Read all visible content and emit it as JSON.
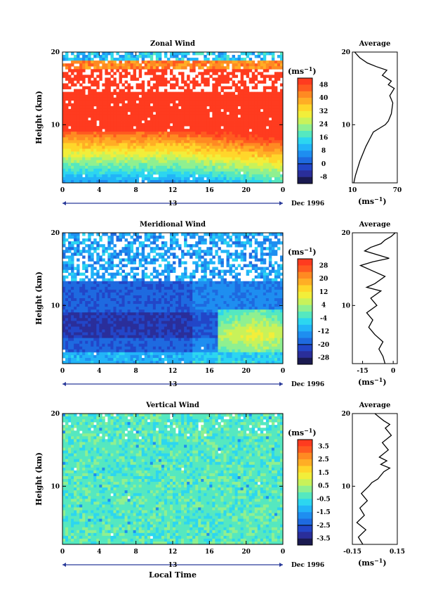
{
  "chart_data": [
    {
      "type": "heatmap",
      "title": "Zonal Wind",
      "xlabel": "",
      "ylabel": "Height (km)",
      "xlim": [
        0,
        24
      ],
      "ylim": [
        2,
        20
      ],
      "x_ticks": [
        "0",
        "4",
        "8",
        "12",
        "16",
        "20",
        "0"
      ],
      "y_ticks": [
        "20",
        "10"
      ],
      "day_label": "13",
      "date_label": "Dec 1996",
      "colorbar": {
        "unit_prefix": "(ms",
        "unit_exp": "−1",
        "unit_suffix": ")",
        "ticks": [
          "48",
          "40",
          "32",
          "24",
          "16",
          "8",
          "0",
          "-8"
        ],
        "levels": [
          52,
          48,
          44,
          40,
          36,
          32,
          28,
          24,
          20,
          16,
          12,
          8,
          4,
          0,
          -4,
          -8
        ]
      },
      "profile": {
        "title": "Average",
        "x_ticks": [
          "10",
          "70"
        ],
        "xlim": [
          10,
          70
        ],
        "y_ticks": [
          "20",
          "10"
        ],
        "unit_prefix": "(ms",
        "unit_exp": "−1",
        "unit_suffix": ")",
        "points": [
          [
            12,
            2
          ],
          [
            14,
            3
          ],
          [
            17,
            4
          ],
          [
            20,
            5
          ],
          [
            24,
            6
          ],
          [
            28,
            7
          ],
          [
            33,
            8
          ],
          [
            38,
            9
          ],
          [
            46,
            9.5
          ],
          [
            54,
            10
          ],
          [
            58,
            10.5
          ],
          [
            62,
            11.5
          ],
          [
            64,
            13
          ],
          [
            60,
            14
          ],
          [
            66,
            15
          ],
          [
            58,
            15.5
          ],
          [
            62,
            16
          ],
          [
            50,
            16.8
          ],
          [
            56,
            17.5
          ],
          [
            42,
            18
          ],
          [
            30,
            18.5
          ],
          [
            20,
            19.2
          ],
          [
            13,
            20
          ]
        ]
      }
    },
    {
      "type": "heatmap",
      "title": "Meridional Wind",
      "xlabel": "",
      "ylabel": "Height (km)",
      "xlim": [
        0,
        24
      ],
      "ylim": [
        2,
        20
      ],
      "x_ticks": [
        "0",
        "4",
        "8",
        "12",
        "16",
        "20",
        "0"
      ],
      "y_ticks": [
        "20",
        "10"
      ],
      "day_label": "13",
      "date_label": "Dec 1996",
      "colorbar": {
        "unit_prefix": "(ms",
        "unit_exp": "−1",
        "unit_suffix": ")",
        "ticks": [
          "28",
          "20",
          "12",
          "4",
          "-4",
          "-12",
          "-20",
          "-28"
        ],
        "levels": [
          32,
          28,
          24,
          20,
          16,
          12,
          8,
          4,
          0,
          -4,
          -8,
          -12,
          -16,
          -20,
          -24,
          -28
        ]
      },
      "profile": {
        "title": "Average",
        "x_ticks": [
          "-15",
          "0"
        ],
        "xlim": [
          -20,
          2
        ],
        "y_ticks": [
          "20",
          "10"
        ],
        "unit_prefix": "(ms",
        "unit_exp": "−1",
        "unit_suffix": ")",
        "points": [
          [
            -4,
            2
          ],
          [
            -5,
            3
          ],
          [
            -7,
            4
          ],
          [
            -5,
            5
          ],
          [
            -9,
            6
          ],
          [
            -12,
            7
          ],
          [
            -10,
            8
          ],
          [
            -13,
            9
          ],
          [
            -8,
            10
          ],
          [
            -11,
            11
          ],
          [
            -6,
            12
          ],
          [
            -13,
            12.5
          ],
          [
            -9,
            13
          ],
          [
            -4,
            14
          ],
          [
            -12,
            15
          ],
          [
            -16,
            15.5
          ],
          [
            -10,
            16
          ],
          [
            -2,
            16.5
          ],
          [
            -14,
            17.5
          ],
          [
            -11,
            18
          ],
          [
            -6,
            18.5
          ],
          [
            -4,
            19
          ],
          [
            -1,
            19.5
          ],
          [
            1,
            20
          ]
        ]
      }
    },
    {
      "type": "heatmap",
      "title": "Vertical Wind",
      "xlabel": "Local Time",
      "ylabel": "Height (km)",
      "xlim": [
        0,
        24
      ],
      "ylim": [
        2,
        20
      ],
      "x_ticks": [
        "0",
        "4",
        "8",
        "12",
        "16",
        "20",
        "0"
      ],
      "y_ticks": [
        "20",
        "10"
      ],
      "day_label": "13",
      "date_label": "Dec 1996",
      "colorbar": {
        "unit_prefix": "(ms",
        "unit_exp": "−1",
        "unit_suffix": ")",
        "ticks": [
          "3.5",
          "2.5",
          "1.5",
          "0.5",
          "-0.5",
          "-1.5",
          "-2.5",
          "-3.5"
        ],
        "levels": [
          4,
          3.5,
          3,
          2.5,
          2,
          1.5,
          1,
          0.5,
          0,
          -0.5,
          -1,
          -1.5,
          -2,
          -2.5,
          -3,
          -3.5
        ]
      },
      "profile": {
        "title": "Average",
        "x_ticks": [
          "-0.15",
          "0.15"
        ],
        "xlim": [
          -0.15,
          0.15
        ],
        "y_ticks": [
          "20",
          "10"
        ],
        "unit_prefix": "(ms",
        "unit_exp": "−1",
        "unit_suffix": ")",
        "points": [
          [
            -0.08,
            2
          ],
          [
            -0.11,
            3
          ],
          [
            -0.06,
            4
          ],
          [
            -0.12,
            5
          ],
          [
            -0.07,
            6
          ],
          [
            -0.1,
            7
          ],
          [
            -0.05,
            8
          ],
          [
            -0.09,
            9
          ],
          [
            -0.04,
            10
          ],
          [
            -0.02,
            10.5
          ],
          [
            0.02,
            11
          ],
          [
            0.06,
            12
          ],
          [
            0.1,
            12.5
          ],
          [
            0.04,
            13
          ],
          [
            0.08,
            13.5
          ],
          [
            0.03,
            14
          ],
          [
            0.09,
            15
          ],
          [
            0.05,
            16
          ],
          [
            0.11,
            17
          ],
          [
            0.07,
            18
          ],
          [
            0.1,
            18.5
          ],
          [
            0.06,
            19
          ],
          [
            0.03,
            19.5
          ],
          [
            0.0,
            20
          ]
        ]
      }
    }
  ],
  "colors": {
    "palette": [
      "#ff3b1f",
      "#ff5a20",
      "#ff8a22",
      "#ffae25",
      "#ffd62a",
      "#f2ee3a",
      "#c8f25a",
      "#8ff090",
      "#55e8c0",
      "#2cd6f0",
      "#22b4f8",
      "#1e8ef0",
      "#1e6ae0",
      "#2246c8",
      "#2a2e9a",
      "#1a1a50"
    ],
    "timeline": "#2a3a9a",
    "axis": "#000000"
  }
}
